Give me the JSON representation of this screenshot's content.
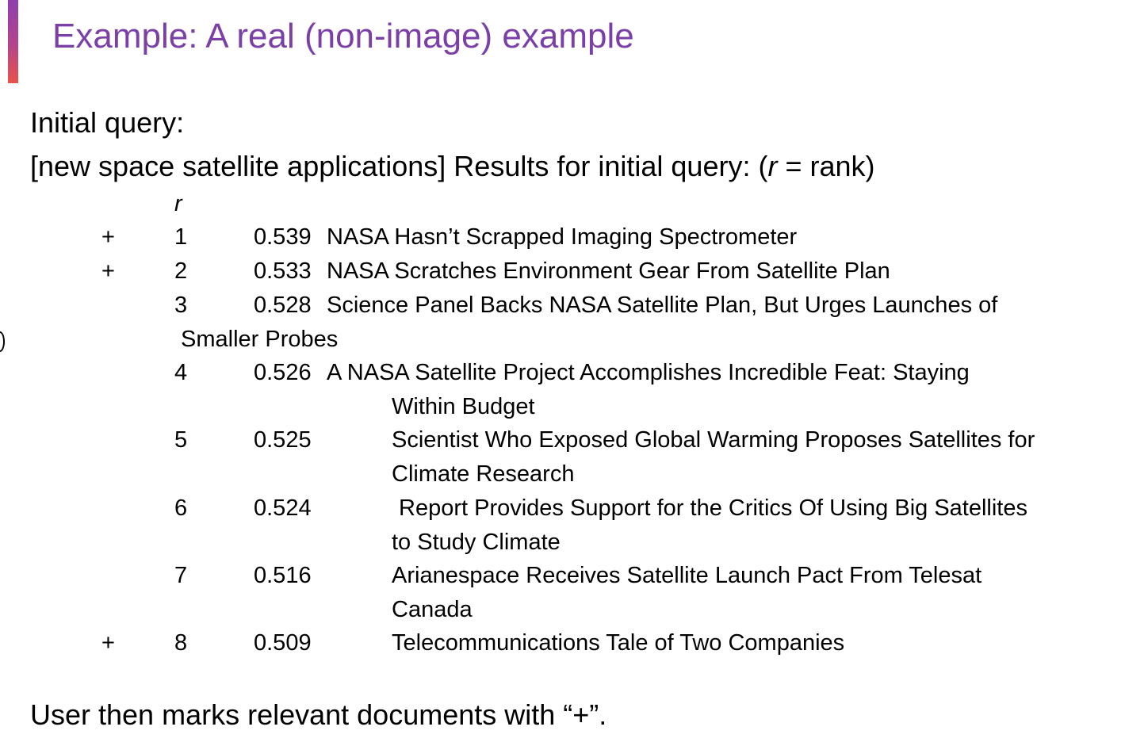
{
  "title": "Example: A real (non-image) example",
  "intro": {
    "line1": "Initial query:",
    "line2_prefix": "[new space satellite applications] Results for initial query: (",
    "line2_symbol": "r",
    "line2_suffix": " = rank)"
  },
  "table": {
    "rank_header": "r",
    "results": [
      {
        "mark": "+",
        "rank": "1",
        "score": "0.539",
        "title_line1": "NASA Hasn’t Scrapped Imaging Spectrometer",
        "title_line2": ""
      },
      {
        "mark": "+",
        "rank": "2",
        "score": "0.533",
        "title_line1": "NASA Scratches Environment Gear From Satellite Plan",
        "title_line2": ""
      },
      {
        "mark": "",
        "rank": "3",
        "score": "0.528",
        "title_line1": "Science Panel Backs NASA Satellite Plan, But Urges Launches of",
        "title_line2": "Smaller Probes"
      },
      {
        "mark": "",
        "rank": "4",
        "score": "0.526",
        "title_line1": "A NASA Satellite Project Accomplishes Incredible Feat: Staying",
        "title_line2": "Within Budget"
      },
      {
        "mark": "",
        "rank": "5",
        "score": "0.525",
        "title_line1": "Scientist Who Exposed Global Warming Proposes Satellites for",
        "title_line2": "Climate Research"
      },
      {
        "mark": "",
        "rank": "6",
        "score": "0.524",
        "title_line1": "Report Provides Support for the Critics Of Using Big Satellites",
        "title_line2": "to Study Climate"
      },
      {
        "mark": "",
        "rank": "7",
        "score": "0.516",
        "title_line1": "Arianespace Receives Satellite Launch Pact From Telesat",
        "title_line2": "Canada"
      },
      {
        "mark": "+",
        "rank": "8",
        "score": "0.509",
        "title_line1": "Telecommunications Tale of Two Companies",
        "title_line2": ""
      }
    ]
  },
  "footer": "User then marks relevant documents with “+”."
}
